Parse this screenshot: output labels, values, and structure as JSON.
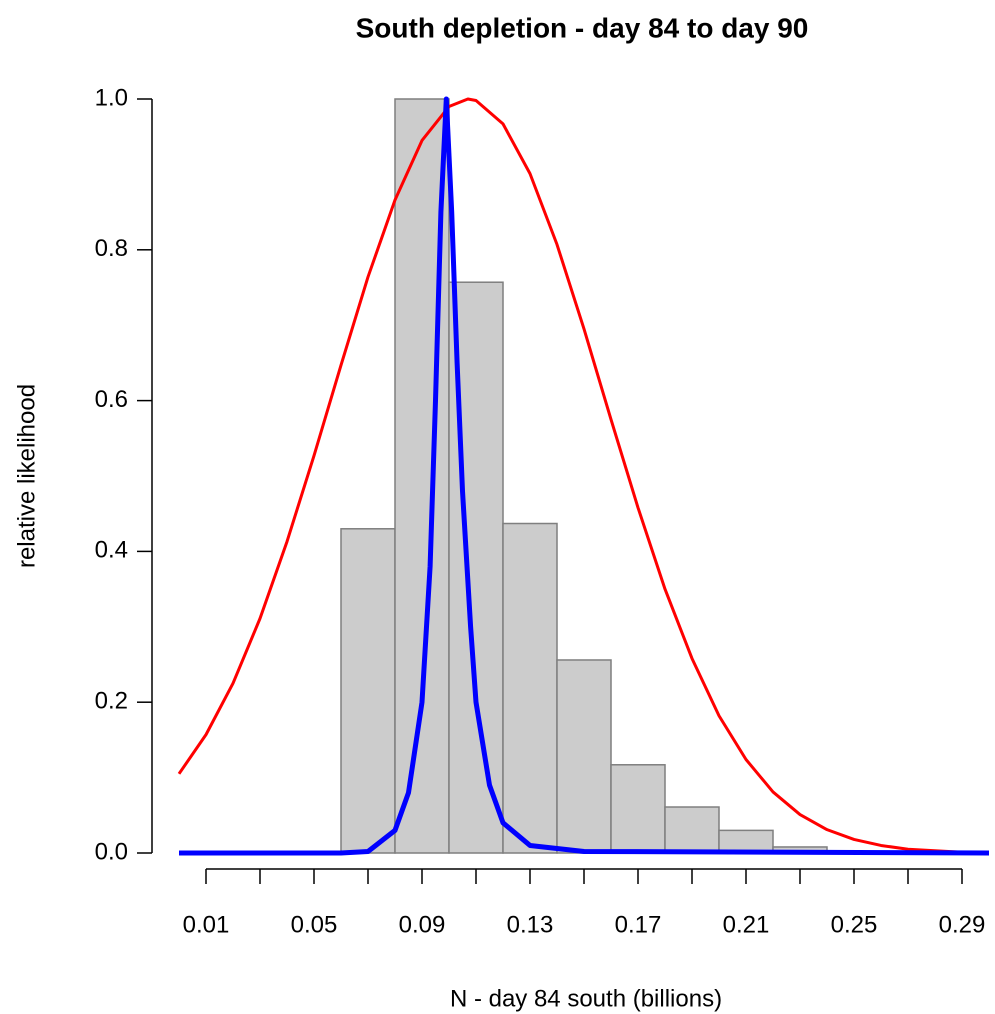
{
  "chart_data": {
    "type": "histogram",
    "title": "South depletion - day 84 to day 90",
    "xlabel": "N - day 84 south  (billions)",
    "ylabel": "relative likelihood",
    "bins": [
      0.06,
      0.08,
      0.1,
      0.12,
      0.14,
      0.16,
      0.18,
      0.2,
      0.22,
      0.24
    ],
    "values": [
      0.43,
      1.0,
      0.757,
      0.437,
      0.256,
      0.117,
      0.061,
      0.03,
      0.008
    ],
    "color": "#cccccc",
    "edgecolor": "#7f7f7f",
    "lines": [
      {
        "color": "#ff0000",
        "x": [
          0,
          0.01,
          0.02,
          0.03,
          0.04,
          0.05,
          0.06,
          0.07,
          0.08,
          0.09,
          0.1,
          0.107,
          0.11,
          0.12,
          0.13,
          0.14,
          0.15,
          0.16,
          0.17,
          0.18,
          0.19,
          0.2,
          0.21,
          0.22,
          0.23,
          0.24,
          0.25,
          0.26,
          0.27,
          0.28,
          0.29,
          0.3
        ],
        "values": [
          0.105,
          0.157,
          0.225,
          0.311,
          0.413,
          0.527,
          0.647,
          0.764,
          0.866,
          0.945,
          0.99,
          1.0,
          0.998,
          0.967,
          0.901,
          0.807,
          0.695,
          0.575,
          0.458,
          0.35,
          0.258,
          0.182,
          0.124,
          0.081,
          0.051,
          0.031,
          0.018,
          0.01,
          0.005,
          0.003,
          0.001,
          0.001
        ]
      },
      {
        "color": "#0000ff",
        "x": [
          0,
          0.06,
          0.07,
          0.08,
          0.085,
          0.09,
          0.093,
          0.095,
          0.097,
          0.099,
          0.101,
          0.103,
          0.105,
          0.108,
          0.11,
          0.115,
          0.12,
          0.13,
          0.15,
          0.3
        ],
        "values": [
          0,
          0,
          0.002,
          0.03,
          0.08,
          0.2,
          0.38,
          0.6,
          0.85,
          1.0,
          0.85,
          0.65,
          0.48,
          0.3,
          0.2,
          0.09,
          0.04,
          0.01,
          0.002,
          0
        ]
      }
    ],
    "xlim": [
      0,
      0.3
    ],
    "ylim": [
      0,
      1
    ],
    "xticks": [
      0.01,
      0.05,
      0.09,
      0.13,
      0.17,
      0.21,
      0.25,
      0.29
    ],
    "xminor_ticks": [
      0.03,
      0.07,
      0.11,
      0.15,
      0.19,
      0.23,
      0.27
    ],
    "yticks": [
      {
        "value": 0,
        "label": "0.0"
      },
      0.2,
      0.4,
      0.6,
      0.8,
      {
        "value": 1,
        "label": "1.0"
      }
    ]
  }
}
